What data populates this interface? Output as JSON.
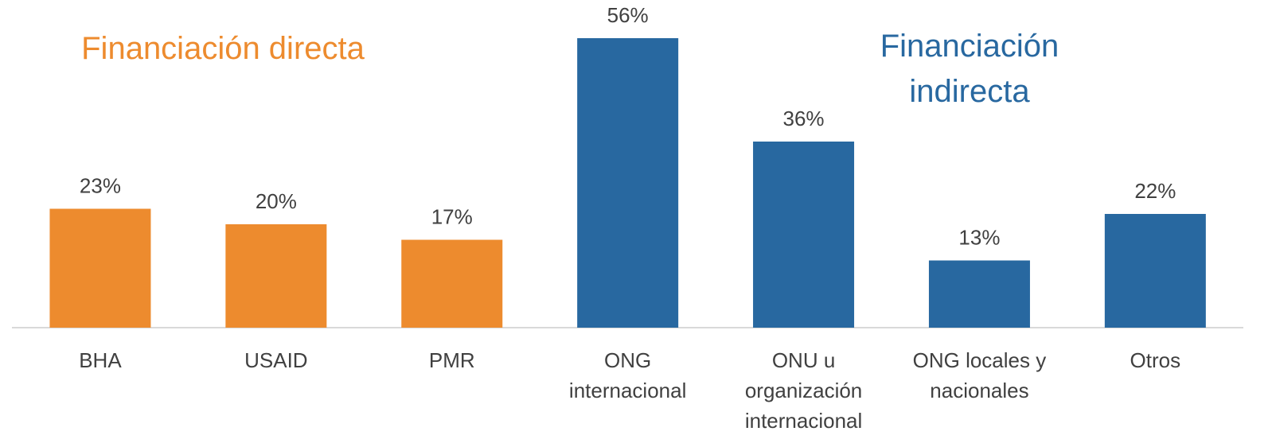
{
  "chart_data": {
    "type": "bar",
    "categories": [
      "BHA",
      "USAID",
      "PMR",
      "ONG internacional",
      "ONU u organización internacional",
      "ONG locales y nacionales",
      "Otros"
    ],
    "values": [
      23,
      20,
      17,
      56,
      36,
      13,
      22
    ],
    "value_labels": [
      "23%",
      "20%",
      "17%",
      "56%",
      "36%",
      "13%",
      "22%"
    ],
    "colors": [
      "#ED8B2E",
      "#ED8B2E",
      "#ED8B2E",
      "#2868A0",
      "#2868A0",
      "#2868A0",
      "#2868A0"
    ],
    "annotations": [
      {
        "text": "Financiación directa",
        "color": "#ED8B2E"
      },
      {
        "text": "Financiación indirecta",
        "color": "#2868A0"
      }
    ]
  }
}
